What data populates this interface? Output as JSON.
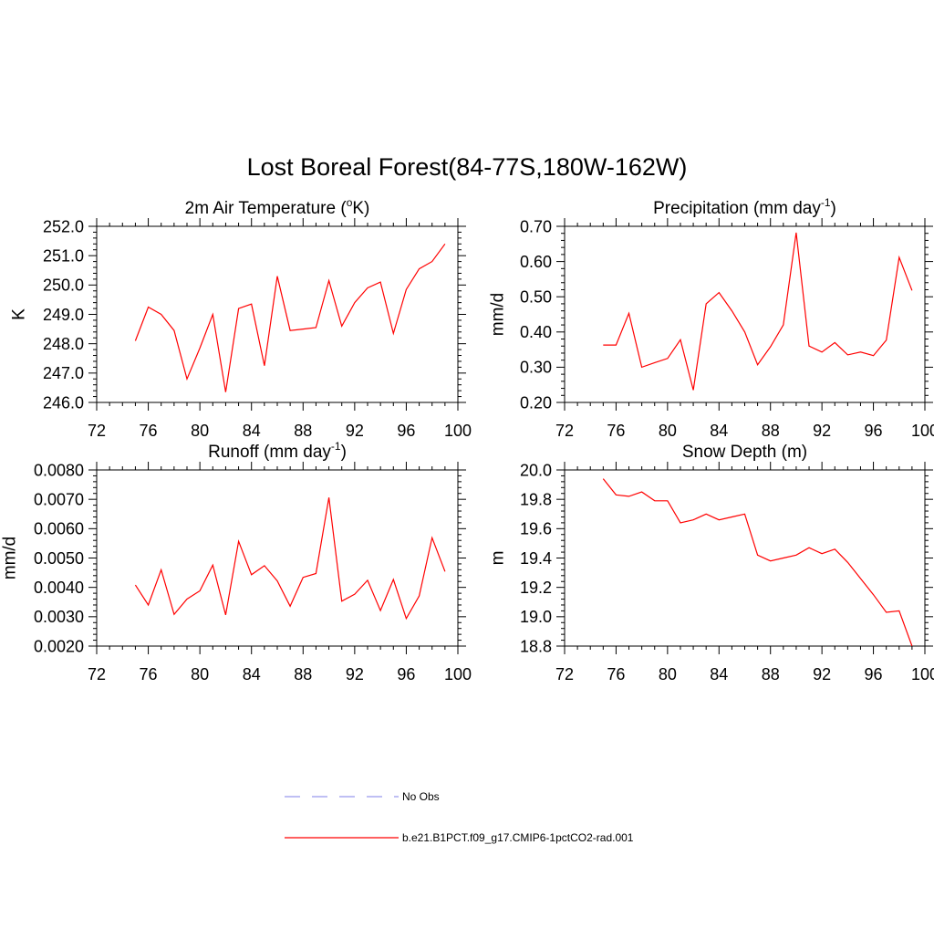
{
  "figure": {
    "title": "Lost Boreal Forest(84-77S,180W-162W)"
  },
  "colors": {
    "series": "#ff0000",
    "no_obs": "#9999ee",
    "axis": "#000000"
  },
  "chart_data": [
    {
      "id": "temp",
      "type": "line",
      "title": "2m Air Temperature (",
      "title_sup": "o",
      "title_post": "K)",
      "ylabel": "K",
      "xlabel": "",
      "xlim": [
        72,
        100
      ],
      "ylim": [
        246.0,
        252.0
      ],
      "xticks": [
        "72",
        "76",
        "80",
        "84",
        "88",
        "92",
        "96",
        "100"
      ],
      "yticks": [
        "246.0",
        "247.0",
        "248.0",
        "249.0",
        "250.0",
        "251.0",
        "252.0"
      ],
      "series": [
        {
          "name": "b.e21.B1PCT.f09_g17.CMIP6-1pctCO2-rad.001",
          "x": [
            75,
            76,
            77,
            78,
            79,
            80,
            81,
            82,
            83,
            84,
            85,
            86,
            87,
            88,
            89,
            90,
            91,
            92,
            93,
            94,
            95,
            96,
            97,
            98,
            99
          ],
          "y": [
            248.1,
            249.25,
            249.0,
            248.45,
            246.8,
            247.85,
            249.0,
            246.35,
            249.2,
            249.35,
            247.25,
            250.3,
            248.45,
            248.5,
            248.55,
            250.15,
            248.6,
            249.4,
            249.9,
            250.1,
            248.35,
            249.85,
            250.55,
            250.8,
            251.4
          ]
        }
      ]
    },
    {
      "id": "precip",
      "type": "line",
      "title": "Precipitation (mm day",
      "title_sup": "-1",
      "title_post": ")",
      "ylabel": "mm/d",
      "xlabel": "",
      "xlim": [
        72,
        100
      ],
      "ylim": [
        0.2,
        0.7
      ],
      "xticks": [
        "72",
        "76",
        "80",
        "84",
        "88",
        "92",
        "96",
        "100"
      ],
      "yticks": [
        "0.20",
        "0.30",
        "0.40",
        "0.50",
        "0.60",
        "0.70"
      ],
      "series": [
        {
          "name": "b.e21.B1PCT.f09_g17.CMIP6-1pctCO2-rad.001",
          "x": [
            75,
            76,
            77,
            78,
            79,
            80,
            81,
            82,
            83,
            84,
            85,
            86,
            87,
            88,
            89,
            90,
            91,
            92,
            93,
            94,
            95,
            96,
            97,
            98,
            99
          ],
          "y": [
            0.363,
            0.363,
            0.453,
            0.3,
            0.313,
            0.325,
            0.378,
            0.235,
            0.48,
            0.512,
            0.46,
            0.4,
            0.307,
            0.358,
            0.42,
            0.682,
            0.36,
            0.343,
            0.37,
            0.335,
            0.343,
            0.333,
            0.377,
            0.612,
            0.518
          ]
        }
      ]
    },
    {
      "id": "runoff",
      "type": "line",
      "title": "Runoff (mm day",
      "title_sup": "-1",
      "title_post": ")",
      "ylabel": "mm/d",
      "xlabel": "",
      "xlim": [
        72,
        100
      ],
      "ylim": [
        0.002,
        0.008
      ],
      "xticks": [
        "72",
        "76",
        "80",
        "84",
        "88",
        "92",
        "96",
        "100"
      ],
      "yticks": [
        "0.0020",
        "0.0030",
        "0.0040",
        "0.0050",
        "0.0060",
        "0.0070",
        "0.0080"
      ],
      "series": [
        {
          "name": "b.e21.B1PCT.f09_g17.CMIP6-1pctCO2-rad.001",
          "x": [
            75,
            76,
            77,
            78,
            79,
            80,
            81,
            82,
            83,
            84,
            85,
            86,
            87,
            88,
            89,
            90,
            91,
            92,
            93,
            94,
            95,
            96,
            97,
            98,
            99
          ],
          "y": [
            0.00408,
            0.0034,
            0.0046,
            0.00308,
            0.0036,
            0.00388,
            0.00476,
            0.00306,
            0.00557,
            0.00443,
            0.00474,
            0.00422,
            0.00336,
            0.00434,
            0.00447,
            0.00706,
            0.00353,
            0.00377,
            0.00424,
            0.00321,
            0.00427,
            0.00294,
            0.00371,
            0.00569,
            0.00454
          ]
        }
      ]
    },
    {
      "id": "snow",
      "type": "line",
      "title": "Snow Depth (m)",
      "title_sup": "",
      "title_post": "",
      "ylabel": "m",
      "xlabel": "",
      "xlim": [
        72,
        100
      ],
      "ylim": [
        18.8,
        20.0
      ],
      "xticks": [
        "72",
        "76",
        "80",
        "84",
        "88",
        "92",
        "96",
        "100"
      ],
      "yticks": [
        "18.8",
        "19.0",
        "19.2",
        "19.4",
        "19.6",
        "19.8",
        "20.0"
      ],
      "series": [
        {
          "name": "b.e21.B1PCT.f09_g17.CMIP6-1pctCO2-rad.001",
          "x": [
            75,
            76,
            77,
            78,
            79,
            80,
            81,
            82,
            83,
            84,
            85,
            86,
            87,
            88,
            89,
            90,
            91,
            92,
            93,
            94,
            95,
            96,
            97,
            98,
            99
          ],
          "y": [
            19.94,
            19.83,
            19.82,
            19.85,
            19.79,
            19.79,
            19.64,
            19.66,
            19.7,
            19.66,
            19.68,
            19.7,
            19.42,
            19.38,
            19.4,
            19.42,
            19.47,
            19.43,
            19.46,
            19.37,
            19.26,
            19.15,
            19.03,
            19.04,
            18.8
          ]
        }
      ]
    }
  ],
  "legend": {
    "items": [
      {
        "label": "No Obs",
        "style": "dashed",
        "color": "#9999ee"
      },
      {
        "label": "b.e21.B1PCT.f09_g17.CMIP6-1pctCO2-rad.001",
        "style": "solid",
        "color": "#ff0000"
      }
    ]
  }
}
